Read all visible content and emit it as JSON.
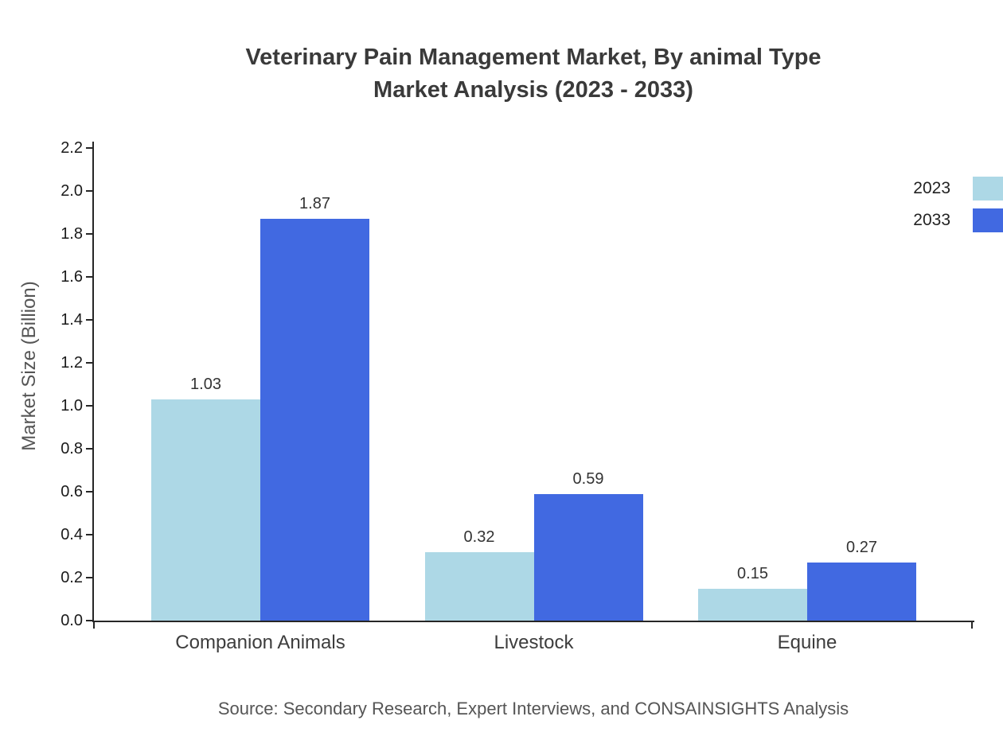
{
  "chart_data": {
    "type": "bar",
    "title_lines": [
      "Veterinary Pain Management Market, By animal Type",
      "Market Analysis (2023 - 2033)"
    ],
    "categories": [
      "Companion Animals",
      "Livestock",
      "Equine"
    ],
    "series": [
      {
        "name": "2023",
        "color": "#add8e6",
        "values": [
          1.03,
          0.32,
          0.15
        ]
      },
      {
        "name": "2033",
        "color": "#4169e1",
        "values": [
          1.87,
          0.59,
          0.27
        ]
      }
    ],
    "xlabel": "",
    "ylabel": "Market Size (Billion)",
    "ylim": [
      0,
      2.2
    ],
    "ytick_step": 0.2,
    "yticks": [
      "0.0",
      "0.2",
      "0.4",
      "0.6",
      "0.8",
      "1.0",
      "1.2",
      "1.4",
      "1.6",
      "1.8",
      "2.0",
      "2.2"
    ],
    "grid": false,
    "value_labels_decimals": 2,
    "legend_position": "top-right",
    "source": "Source: Secondary Research, Expert Interviews, and CONSAINSIGHTS Analysis"
  }
}
